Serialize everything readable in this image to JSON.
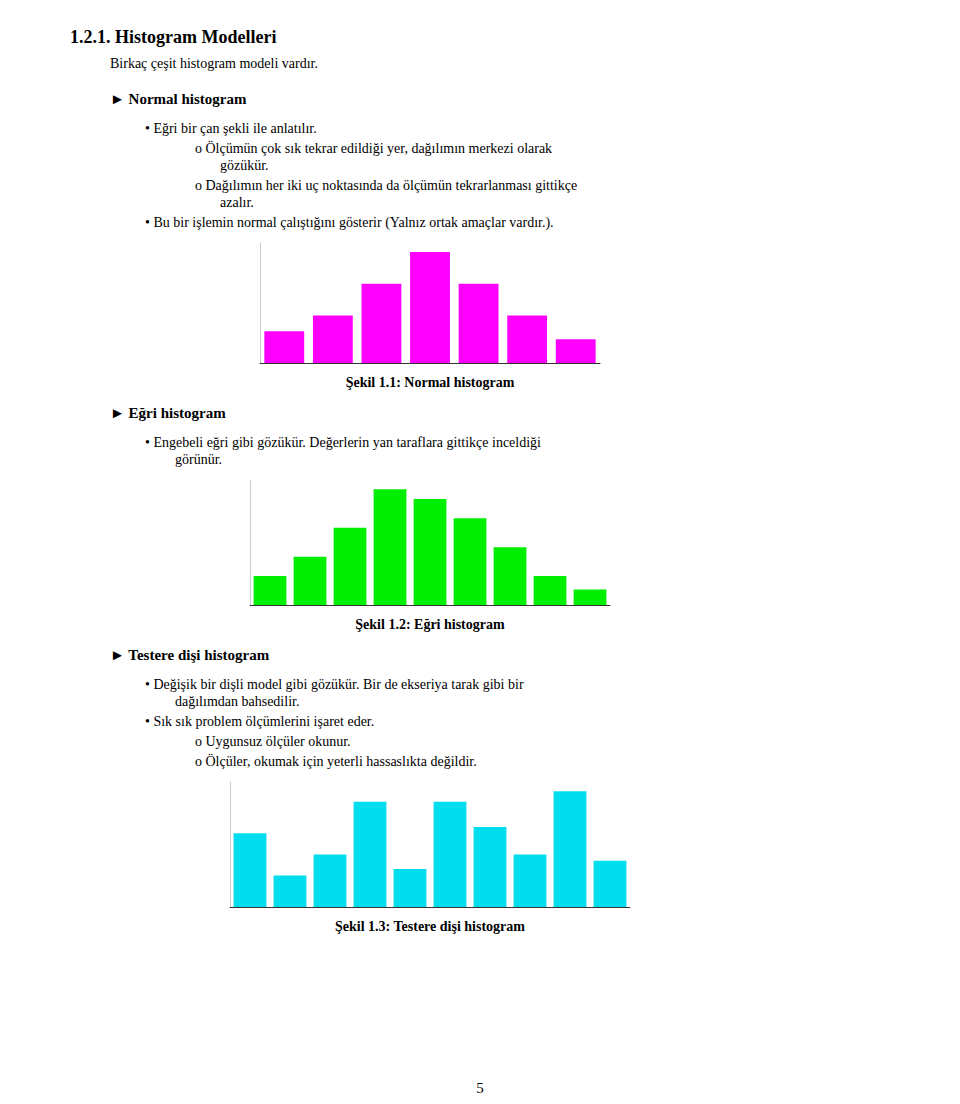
{
  "title": "1.2.1. Histogram Modelleri",
  "subtitle": "Birkaç çeşit histogram modeli vardır.",
  "annotations": [
    "5"
  ],
  "chart_data": [
    {
      "type": "bar",
      "title": "Şekil 1.1: Normal histogram",
      "annotations": [
        "► Normal histogram",
        "• Eğri bir çan şekli ile anlatılır.",
        "o Ölçümün çok sık tekrar edildiği yer, dağılımın merkezi olarak",
        "gözükür.",
        "o Dağılımın her iki uç noktasında da ölçümün tekrarlanması gittikçe",
        "azalır.",
        "• Bu bir işlemin normal çalıştığını gösterir (Yalnız ortak amaçlar vardır.)."
      ],
      "categories": [
        null,
        null,
        null,
        null,
        null,
        null,
        null
      ],
      "values": [
        2,
        3,
        5,
        7,
        5,
        3,
        1.5
      ],
      "color": "#FF00FF",
      "ylim": [
        0,
        7.56
      ],
      "grid": false,
      "tick_labels": false
    },
    {
      "type": "bar",
      "title": "Şekil 1.2: Eğri histogram",
      "annotations": [
        "► Eğri histogram",
        "• Engebeli eğri gibi gözükür. Değerlerin yan taraflara gittikçe inceldiği",
        "görünür."
      ],
      "categories": [
        null,
        null,
        null,
        null,
        null,
        null,
        null,
        null,
        null
      ],
      "values": [
        1.5,
        2.5,
        4,
        6,
        5.5,
        4.5,
        3,
        1.5,
        0.8
      ],
      "color": "#00EE00",
      "ylim": [
        0,
        6.48
      ],
      "grid": false,
      "tick_labels": false
    },
    {
      "type": "bar",
      "title": "Şekil 1.3: Testere dişi histogram",
      "annotations": [
        "► Testere dişi histogram",
        "• Değişik bir dişli model gibi gözükür. Bir de ekseriya tarak gibi bir",
        "dağılımdan bahsedilir.",
        "• Sık sık problem ölçümlerini işaret eder.",
        "o Uygunsuz ölçüler okunur.",
        "o Ölçüler, okumak için yeterli hassaslıkta değildir."
      ],
      "categories": [
        null,
        null,
        null,
        null,
        null,
        null,
        null,
        null,
        null,
        null
      ],
      "values": [
        3.5,
        1.5,
        2.5,
        5,
        1.8,
        5,
        3.8,
        2.5,
        5.5,
        2.2
      ],
      "color": "#00DDEE",
      "ylim": [
        0,
        5.94
      ],
      "grid": false,
      "tick_labels": false
    }
  ]
}
